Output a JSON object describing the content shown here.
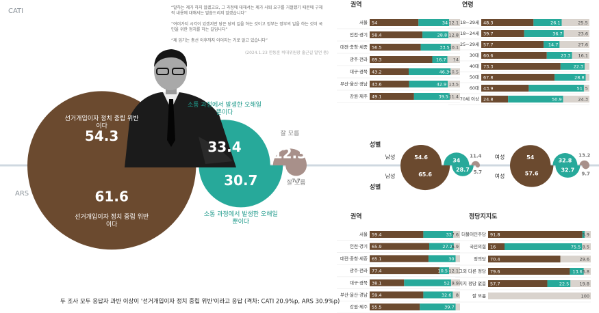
{
  "quotes": [
    "“말하는 제가 하지 않겠고요, 그 과정에 대해서는 제가 사퇴 요구를 거절했기 때문에 구체적 내용에 대해서는 말씀드리지 않겠습니다”",
    "“여러가지 시각이 있겠지만 당은 당의 일을 하는 것이고 정부는 정부의 일을 하는 것이 국민을 위한 정치를 하는 길입니다”",
    "“제 임기는 총선 이후까지 이어지는 거로 알고 있습니다”"
  ],
  "quote_source": "(2024.1.23 한동훈 비대위원장 출근길 발언 중)",
  "caption": "두 조사 모두 응답자 과반 이상이 '선거개입이자 정치 중립 위반'이라고 응답 (격차: CATI 20.9%p, ARS 30.9%p)",
  "chart_data": [
    {
      "type": "bubble",
      "categories": [
        "선거개입이자 정치 중립 위반이다",
        "소통 과정에서 발생한 오해일 뿐이다",
        "잘 모름"
      ],
      "colors": [
        "#6b4a2f",
        "#27a99a",
        "#a8908a"
      ],
      "series": [
        {
          "name": "CATI",
          "values": [
            54.3,
            33.4,
            12.3
          ]
        },
        {
          "name": "ARS",
          "values": [
            61.6,
            30.7,
            7.7
          ]
        }
      ]
    },
    {
      "type": "bubble",
      "title": "성별",
      "label": "남성",
      "colors": [
        "#6b4a2f",
        "#27a99a",
        "#a8908a"
      ],
      "series": [
        {
          "values": [
            54.6,
            34.0,
            11.4
          ]
        },
        {
          "values": [
            65.6,
            28.7,
            5.7
          ]
        }
      ]
    },
    {
      "type": "bubble",
      "label": "여성",
      "colors": [
        "#6b4a2f",
        "#27a99a",
        "#a8908a"
      ],
      "series": [
        {
          "values": [
            54.0,
            32.8,
            13.2
          ]
        },
        {
          "values": [
            57.6,
            32.7,
            9.7
          ]
        }
      ]
    },
    {
      "type": "stacked-bar",
      "title": "권역",
      "xlim": [
        0,
        100
      ],
      "categories": [
        "서울",
        "인천·경기",
        "대전·충청·세종",
        "광주·전라",
        "대구·경북",
        "부산·울산·경남",
        "강원·제주"
      ],
      "series": [
        {
          "color": "#6b4a2f",
          "values": [
            54.0,
            58.4,
            56.5,
            69.3,
            43.2,
            43.6,
            49.1
          ]
        },
        {
          "color": "#27a99a",
          "values": [
            34.0,
            28.8,
            33.5,
            16.7,
            46.3,
            42.9,
            39.5
          ]
        },
        {
          "color": "#d9d3cd",
          "values": [
            12.1,
            12.8,
            10.1,
            14.0,
            10.5,
            13.5,
            11.4
          ]
        }
      ]
    },
    {
      "type": "stacked-bar",
      "title": "연령",
      "xlim": [
        0,
        100
      ],
      "categories": [
        "18~29세",
        "18~24세",
        "25~29세",
        "30대",
        "40대",
        "50대",
        "60대",
        "70세 이상"
      ],
      "series": [
        {
          "color": "#6b4a2f",
          "values": [
            48.3,
            39.7,
            57.7,
            60.6,
            73.3,
            67.8,
            43.9,
            24.8
          ]
        },
        {
          "color": "#27a99a",
          "values": [
            26.1,
            36.7,
            14.7,
            23.3,
            22.3,
            28.8,
            51.0,
            50.9
          ]
        },
        {
          "color": "#d9d3cd",
          "values": [
            25.5,
            23.6,
            27.6,
            16.1,
            4.4,
            3.4,
            5.0,
            24.3
          ]
        }
      ]
    },
    {
      "type": "stacked-bar",
      "title": "권역",
      "xlim": [
        0,
        100
      ],
      "categories": [
        "서울",
        "인천·경기",
        "대전·충청·세종",
        "광주·전라",
        "대구·경북",
        "부산·울산·경남",
        "강원·제주"
      ],
      "series": [
        {
          "color": "#6b4a2f",
          "values": [
            59.4,
            65.9,
            65.1,
            77.4,
            38.1,
            59.4,
            55.5
          ]
        },
        {
          "color": "#27a99a",
          "values": [
            33.0,
            27.2,
            30.0,
            10.5,
            52.0,
            32.6,
            39.7
          ]
        },
        {
          "color": "#d9d3cd",
          "values": [
            7.6,
            6.9,
            4.9,
            12.1,
            9.9,
            8.0,
            4.8
          ]
        }
      ]
    },
    {
      "type": "stacked-bar",
      "title": "정당지지도",
      "xlim": [
        0,
        100
      ],
      "categories": [
        "더불어민주당",
        "국민의힘",
        "정의당",
        "그외 다른 정당",
        "지지 정당 없음",
        "잘 모름"
      ],
      "series": [
        {
          "color": "#6b4a2f",
          "values": [
            91.8,
            16.0,
            70.4,
            79.6,
            57.7,
            0
          ]
        },
        {
          "color": "#27a99a",
          "values": [
            2.3,
            75.5,
            0,
            13.6,
            22.5,
            0
          ]
        },
        {
          "color": "#d9d3cd",
          "values": [
            5.9,
            8.5,
            29.6,
            6.8,
            19.8,
            100.0
          ]
        }
      ]
    }
  ]
}
